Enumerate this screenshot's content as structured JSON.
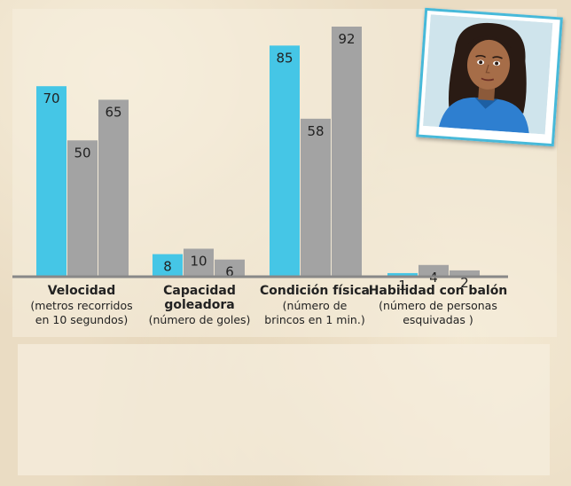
{
  "chart_data": {
    "type": "bar",
    "categories": [
      {
        "title": "Velocidad",
        "subtitle": "(metros recorridos\nen 10 segundos)"
      },
      {
        "title": "Capacidad\ngoleadora",
        "subtitle": "(número de goles)"
      },
      {
        "title": "Condición física",
        "subtitle": "(número de\nbrincos en 1 min.)"
      },
      {
        "title": "Habilidad con balón",
        "subtitle": "(número de personas\nesquivadas )"
      }
    ],
    "groups": [
      {
        "values": [
          70,
          50,
          65
        ]
      },
      {
        "values": [
          8,
          10,
          6
        ]
      },
      {
        "values": [
          85,
          58,
          92
        ]
      },
      {
        "values": [
          1,
          4,
          2
        ]
      }
    ],
    "highlight_index": 0,
    "colors": {
      "highlight": "#45c6e6",
      "other": "#a3a3a3",
      "axis": "#888888"
    }
  },
  "avatar": {
    "icon": "girl-soccer-player-portrait-icon"
  }
}
